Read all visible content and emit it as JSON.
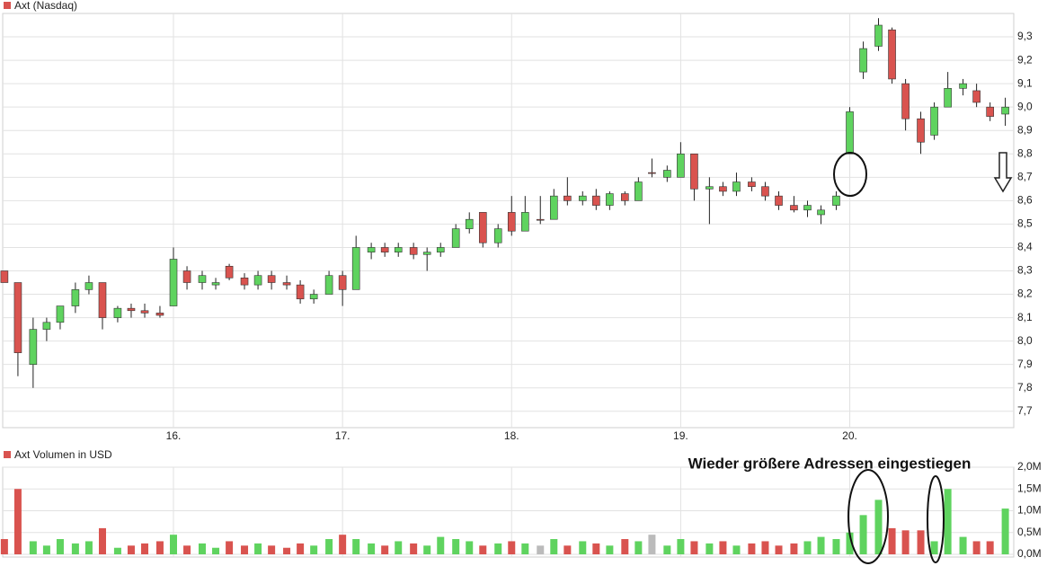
{
  "chart_data": [
    {
      "type": "candlestick",
      "title": "Axt (Nasdaq)",
      "up_color": "#5fd35f",
      "down_color": "#d9534f",
      "grid": true,
      "x": [
        15.0,
        15.08,
        15.17,
        15.25,
        15.33,
        15.42,
        15.5,
        15.58,
        15.67,
        15.75,
        15.83,
        15.92,
        16.0,
        16.08,
        16.17,
        16.25,
        16.33,
        16.42,
        16.5,
        16.58,
        16.67,
        16.75,
        16.83,
        16.92,
        17.0,
        17.08,
        17.17,
        17.25,
        17.33,
        17.42,
        17.5,
        17.58,
        17.67,
        17.75,
        17.83,
        17.92,
        18.0,
        18.08,
        18.17,
        18.25,
        18.33,
        18.42,
        18.5,
        18.58,
        18.67,
        18.75,
        18.83,
        18.92,
        19.0,
        19.08,
        19.17,
        19.25,
        19.33,
        19.42,
        19.5,
        19.58,
        19.67,
        19.75,
        19.83,
        19.92,
        20.0,
        20.08,
        20.17,
        20.25,
        20.33,
        20.42,
        20.5,
        20.58,
        20.67,
        20.75,
        20.83,
        20.92
      ],
      "open": [
        8.3,
        8.25,
        7.9,
        8.05,
        8.08,
        8.15,
        8.22,
        8.25,
        8.1,
        8.14,
        8.13,
        8.12,
        8.15,
        8.3,
        8.25,
        8.24,
        8.32,
        8.27,
        8.24,
        8.28,
        8.25,
        8.24,
        8.18,
        8.2,
        8.28,
        8.22,
        8.38,
        8.4,
        8.38,
        8.4,
        8.37,
        8.38,
        8.4,
        8.48,
        8.55,
        8.42,
        8.55,
        8.47,
        8.52,
        8.52,
        8.62,
        8.6,
        8.62,
        8.58,
        8.63,
        8.6,
        8.72,
        8.7,
        8.7,
        8.8,
        8.65,
        8.66,
        8.64,
        8.68,
        8.66,
        8.62,
        8.58,
        8.56,
        8.54,
        8.58,
        8.8,
        9.15,
        9.26,
        9.33,
        9.1,
        8.95,
        8.88,
        9.0,
        9.08,
        9.07,
        9.0,
        8.97
      ],
      "high": [
        8.3,
        8.25,
        8.1,
        8.1,
        8.15,
        8.25,
        8.28,
        8.25,
        8.15,
        8.16,
        8.16,
        8.15,
        8.4,
        8.32,
        8.3,
        8.27,
        8.33,
        8.29,
        8.3,
        8.3,
        8.28,
        8.26,
        8.22,
        8.3,
        8.3,
        8.45,
        8.42,
        8.42,
        8.42,
        8.42,
        8.4,
        8.42,
        8.5,
        8.55,
        8.55,
        8.5,
        8.62,
        8.62,
        8.62,
        8.65,
        8.7,
        8.64,
        8.65,
        8.64,
        8.64,
        8.7,
        8.78,
        8.75,
        8.85,
        8.8,
        8.7,
        8.68,
        8.72,
        8.7,
        8.68,
        8.64,
        8.62,
        8.6,
        8.58,
        8.64,
        9.0,
        9.28,
        9.38,
        9.34,
        9.12,
        8.98,
        9.02,
        9.15,
        9.12,
        9.1,
        9.02,
        9.04
      ],
      "low": [
        8.25,
        7.85,
        7.8,
        8.0,
        8.05,
        8.12,
        8.2,
        8.05,
        8.08,
        8.1,
        8.1,
        8.1,
        8.15,
        8.22,
        8.22,
        8.22,
        8.26,
        8.22,
        8.22,
        8.22,
        8.22,
        8.16,
        8.16,
        8.2,
        8.15,
        8.22,
        8.35,
        8.36,
        8.36,
        8.35,
        8.3,
        8.36,
        8.4,
        8.46,
        8.4,
        8.4,
        8.45,
        8.47,
        8.5,
        8.52,
        8.58,
        8.58,
        8.56,
        8.56,
        8.58,
        8.6,
        8.7,
        8.68,
        8.7,
        8.6,
        8.5,
        8.62,
        8.62,
        8.64,
        8.6,
        8.56,
        8.55,
        8.53,
        8.5,
        8.56,
        8.8,
        9.12,
        9.24,
        9.1,
        8.9,
        8.8,
        8.86,
        9.0,
        9.05,
        9.0,
        8.94,
        8.92
      ],
      "close": [
        8.25,
        7.95,
        8.05,
        8.08,
        8.15,
        8.22,
        8.25,
        8.1,
        8.14,
        8.13,
        8.12,
        8.11,
        8.35,
        8.25,
        8.28,
        8.25,
        8.27,
        8.24,
        8.28,
        8.25,
        8.24,
        8.18,
        8.2,
        8.28,
        8.22,
        8.4,
        8.4,
        8.38,
        8.4,
        8.37,
        8.38,
        8.4,
        8.48,
        8.52,
        8.42,
        8.48,
        8.47,
        8.55,
        8.52,
        8.62,
        8.6,
        8.62,
        8.58,
        8.63,
        8.6,
        8.68,
        8.72,
        8.73,
        8.8,
        8.65,
        8.66,
        8.64,
        8.68,
        8.66,
        8.62,
        8.58,
        8.56,
        8.58,
        8.56,
        8.62,
        8.98,
        9.25,
        9.35,
        9.12,
        8.95,
        8.85,
        9.0,
        9.08,
        9.1,
        9.02,
        8.96,
        9.0
      ],
      "xlim": [
        14.99,
        20.97
      ],
      "xticks": [
        {
          "value": 16,
          "label": "16."
        },
        {
          "value": 17,
          "label": "17."
        },
        {
          "value": 18,
          "label": "18."
        },
        {
          "value": 19,
          "label": "19."
        },
        {
          "value": 20,
          "label": "20."
        }
      ],
      "ylim": [
        7.63,
        9.4
      ],
      "yticks": [
        {
          "value": 7.7,
          "label": "7,7"
        },
        {
          "value": 7.8,
          "label": "7,8"
        },
        {
          "value": 7.9,
          "label": "7,9"
        },
        {
          "value": 8.0,
          "label": "8,0"
        },
        {
          "value": 8.1,
          "label": "8,1"
        },
        {
          "value": 8.2,
          "label": "8,2"
        },
        {
          "value": 8.3,
          "label": "8,3"
        },
        {
          "value": 8.4,
          "label": "8,4"
        },
        {
          "value": 8.5,
          "label": "8,5"
        },
        {
          "value": 8.6,
          "label": "8,6"
        },
        {
          "value": 8.7,
          "label": "8,7"
        },
        {
          "value": 8.8,
          "label": "8,8"
        },
        {
          "value": 8.9,
          "label": "8,9"
        },
        {
          "value": 9.0,
          "label": "9,0"
        },
        {
          "value": 9.1,
          "label": "9,1"
        },
        {
          "value": 9.2,
          "label": "9,2"
        },
        {
          "value": 9.3,
          "label": "9,3"
        }
      ]
    },
    {
      "type": "bar",
      "title": "Axt Volumen in USD",
      "annotation": "Wieder größere Adressen eingestiegen",
      "flat_color": "#bbbbbb",
      "grid": true,
      "x": [
        15.0,
        15.08,
        15.17,
        15.25,
        15.33,
        15.42,
        15.5,
        15.58,
        15.67,
        15.75,
        15.83,
        15.92,
        16.0,
        16.08,
        16.17,
        16.25,
        16.33,
        16.42,
        16.5,
        16.58,
        16.67,
        16.75,
        16.83,
        16.92,
        17.0,
        17.08,
        17.17,
        17.25,
        17.33,
        17.42,
        17.5,
        17.58,
        17.67,
        17.75,
        17.83,
        17.92,
        18.0,
        18.08,
        18.17,
        18.25,
        18.33,
        18.42,
        18.5,
        18.58,
        18.67,
        18.75,
        18.83,
        18.92,
        19.0,
        19.08,
        19.17,
        19.25,
        19.33,
        19.42,
        19.5,
        19.58,
        19.67,
        19.75,
        19.83,
        19.92,
        20.0,
        20.08,
        20.17,
        20.25,
        20.33,
        20.42,
        20.5,
        20.58,
        20.67,
        20.75,
        20.83,
        20.92
      ],
      "values": [
        0.35,
        1.5,
        0.3,
        0.2,
        0.35,
        0.25,
        0.3,
        0.6,
        0.15,
        0.2,
        0.25,
        0.3,
        0.45,
        0.2,
        0.25,
        0.15,
        0.3,
        0.2,
        0.25,
        0.2,
        0.15,
        0.25,
        0.2,
        0.35,
        0.45,
        0.35,
        0.25,
        0.2,
        0.3,
        0.25,
        0.2,
        0.4,
        0.35,
        0.3,
        0.2,
        0.25,
        0.3,
        0.25,
        0.2,
        0.35,
        0.2,
        0.3,
        0.25,
        0.2,
        0.35,
        0.3,
        0.45,
        0.2,
        0.35,
        0.3,
        0.25,
        0.3,
        0.2,
        0.25,
        0.3,
        0.2,
        0.25,
        0.3,
        0.4,
        0.35,
        0.5,
        0.9,
        1.25,
        0.6,
        0.55,
        0.55,
        0.3,
        1.5,
        0.4,
        0.3,
        0.3,
        1.05
      ],
      "xlim": [
        14.99,
        20.97
      ],
      "ylim": [
        0,
        2.0
      ],
      "yticks": [
        {
          "value": 0,
          "label": "0,0M"
        },
        {
          "value": 0.5,
          "label": "0,5M"
        },
        {
          "value": 1.0,
          "label": "1,0M"
        },
        {
          "value": 1.5,
          "label": "1,5M"
        },
        {
          "value": 2.0,
          "label": "2,0M"
        }
      ]
    }
  ]
}
